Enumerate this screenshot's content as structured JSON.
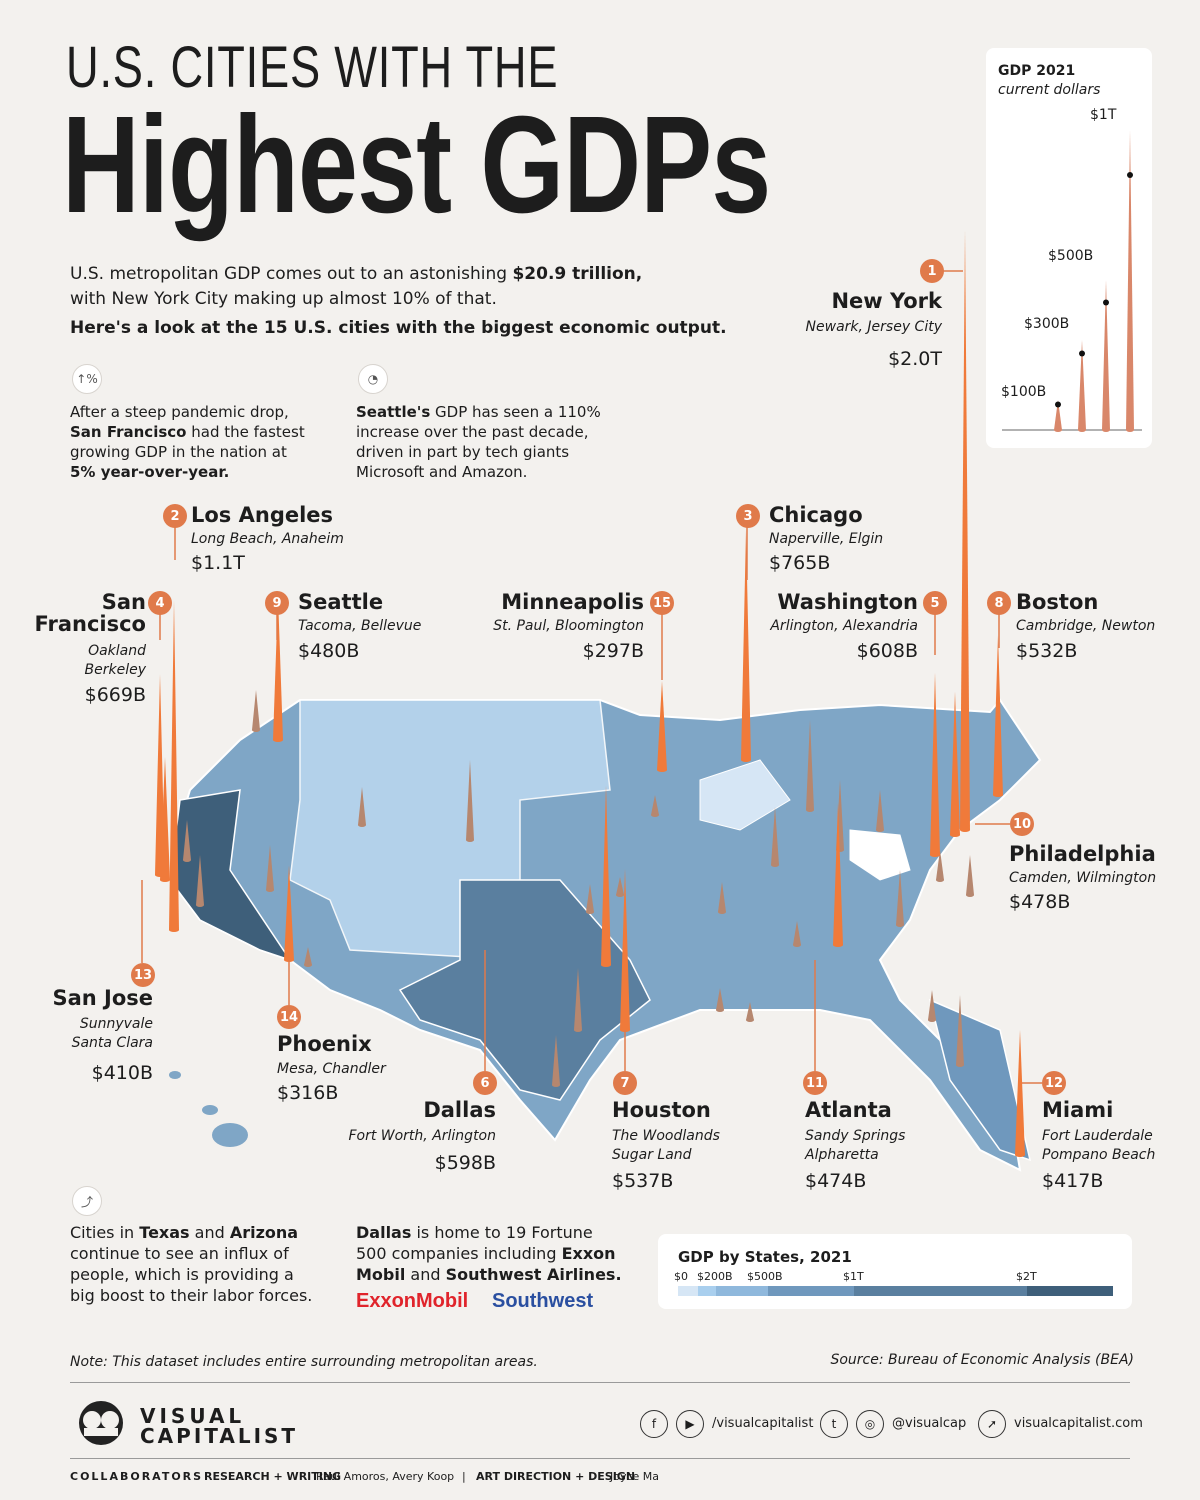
{
  "title": {
    "line1": "U.S. CITIES WITH THE",
    "line2": "Highest GDPs"
  },
  "intro": {
    "p1_a": "U.S. metropolitan GDP comes out to an astonishing ",
    "p1_b": "$20.9 trillion,",
    "p1_c": "with New York City making up almost 10% of that.",
    "p2": "Here's a look at the 15 U.S. cities with the biggest economic output."
  },
  "notes": {
    "sf": {
      "icon": "growth-icon",
      "t1": "After a steep pandemic drop,",
      "b1": "San Francisco",
      "t2": " had the fastest",
      "t3": "growing GDP in the nation at",
      "b2": "5% year-over-year."
    },
    "seattle": {
      "icon": "gauge-icon",
      "b1": "Seattle's",
      "t1": " GDP has seen a 110%",
      "t2": "increase over the past decade,",
      "t3": "driven in part by tech giants",
      "t4": "Microsoft and Amazon."
    },
    "texas": {
      "icon": "climb-icon",
      "t1": "Cities in ",
      "b1": "Texas",
      "t2": " and ",
      "b2": "Arizona",
      "t3": "continue to see an influx of",
      "t4": "people, which is providing a",
      "t5": "big boost to their labor forces."
    },
    "dallas": {
      "b1": "Dallas",
      "t1": " is home to 19 Fortune",
      "t2": "500 companies including ",
      "b2": "Exxon",
      "b3": "Mobil",
      "t3": " and ",
      "b4": "Southwest Airlines.",
      "logo1": "ExxonMobil",
      "logo2": "Southwest"
    }
  },
  "legend_spikes": {
    "title": "GDP 2021",
    "subtitle": "current dollars",
    "labels": [
      "$100B",
      "$300B",
      "$500B",
      "$1T"
    ],
    "values": [
      100,
      300,
      500,
      1000
    ]
  },
  "states_legend": {
    "title": "GDP by States, 2021",
    "ticks": [
      "$0",
      "$200B",
      "$500B",
      "$1T",
      "$2T"
    ],
    "colors": [
      "#d6e6f5",
      "#a9cfee",
      "#8fb8dc",
      "#6f98bd",
      "#5a7f9f",
      "#3e5f7a"
    ]
  },
  "chart_data": {
    "type": "bar",
    "title": "U.S. Cities with the Highest GDPs",
    "unit": "GDP 2021, current dollars",
    "categories": [
      "New York",
      "Los Angeles",
      "Chicago",
      "San Francisco",
      "Washington",
      "Dallas",
      "Houston",
      "Boston",
      "Seattle",
      "Philadelphia",
      "Atlanta",
      "Miami",
      "San Jose",
      "Phoenix",
      "Minneapolis"
    ],
    "values_billions": [
      2000,
      1100,
      765,
      669,
      608,
      598,
      537,
      532,
      480,
      478,
      474,
      417,
      410,
      316,
      297
    ],
    "cities": [
      {
        "rank": "1",
        "name": "New York",
        "sub": [
          "Newark, Jersey City"
        ],
        "value": "$2.0T"
      },
      {
        "rank": "2",
        "name": "Los Angeles",
        "sub": [
          "Long Beach, Anaheim"
        ],
        "value": "$1.1T"
      },
      {
        "rank": "3",
        "name": "Chicago",
        "sub": [
          "Naperville, Elgin"
        ],
        "value": "$765B"
      },
      {
        "rank": "4",
        "name": "San Francisco",
        "name_lines": [
          "San",
          "Francisco"
        ],
        "sub": [
          "Oakland",
          "Berkeley"
        ],
        "value": "$669B"
      },
      {
        "rank": "5",
        "name": "Washington",
        "sub": [
          "Arlington, Alexandria"
        ],
        "value": "$608B"
      },
      {
        "rank": "6",
        "name": "Dallas",
        "sub": [
          "Fort Worth, Arlington"
        ],
        "value": "$598B"
      },
      {
        "rank": "7",
        "name": "Houston",
        "sub": [
          "The Woodlands",
          "Sugar Land"
        ],
        "value": "$537B"
      },
      {
        "rank": "8",
        "name": "Boston",
        "sub": [
          "Cambridge, Newton"
        ],
        "value": "$532B"
      },
      {
        "rank": "9",
        "name": "Seattle",
        "sub": [
          "Tacoma, Bellevue"
        ],
        "value": "$480B"
      },
      {
        "rank": "10",
        "name": "Philadelphia",
        "sub": [
          "Camden, Wilmington"
        ],
        "value": "$478B"
      },
      {
        "rank": "11",
        "name": "Atlanta",
        "sub": [
          "Sandy Springs",
          "Alpharetta"
        ],
        "value": "$474B"
      },
      {
        "rank": "12",
        "name": "Miami",
        "sub": [
          "Fort Lauderdale",
          "Pompano Beach"
        ],
        "value": "$417B"
      },
      {
        "rank": "13",
        "name": "San Jose",
        "sub": [
          "Sunnyvale",
          "Santa Clara"
        ],
        "value": "$410B"
      },
      {
        "rank": "14",
        "name": "Phoenix",
        "sub": [
          "Mesa, Chandler"
        ],
        "value": "$316B"
      },
      {
        "rank": "15",
        "name": "Minneapolis",
        "sub": [
          "St. Paul,  Bloomington"
        ],
        "value": "$297B"
      }
    ]
  },
  "footer": {
    "note": "Note: This dataset includes entire surrounding metropolitan areas.",
    "source": "Source: Bureau of Economic Analysis (BEA)",
    "brand1": "VISUAL",
    "brand2": "CAPITALIST",
    "social1": "/visualcapitalist",
    "social2": "@visualcap",
    "social3": "visualcapitalist.com",
    "collab_label": "COLLABORATORS",
    "research_label": "RESEARCH + WRITING",
    "research_names": "Raul Amoros, Avery Koop",
    "sep": "|",
    "art_label": "ART DIRECTION + DESIGN",
    "art_names": "Joyce Ma"
  }
}
